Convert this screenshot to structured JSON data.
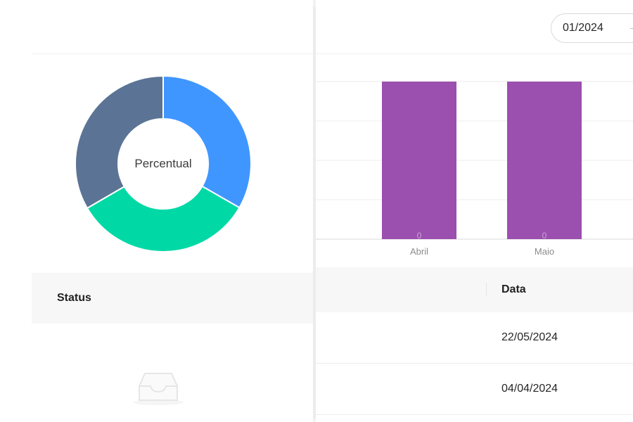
{
  "filters": {
    "month_value": "01/2024"
  },
  "donut": {
    "center_label": "Percentual",
    "slices": [
      {
        "value": 33.3,
        "color": "#4096ff"
      },
      {
        "value": 33.3,
        "color": "#00d9a6"
      },
      {
        "value": 33.4,
        "color": "#5b7395"
      }
    ]
  },
  "left_table": {
    "status_header": "Status",
    "empty_icon": "inbox-icon"
  },
  "chart_data": {
    "type": "bar",
    "categories": [
      "Abril",
      "Maio"
    ],
    "values": [
      0,
      0
    ],
    "data_labels": [
      "0",
      "0"
    ],
    "color": "#9b4fae"
  },
  "right_table": {
    "date_header": "Data",
    "rows": [
      {
        "date": "22/05/2024"
      },
      {
        "date": "04/04/2024"
      }
    ]
  }
}
